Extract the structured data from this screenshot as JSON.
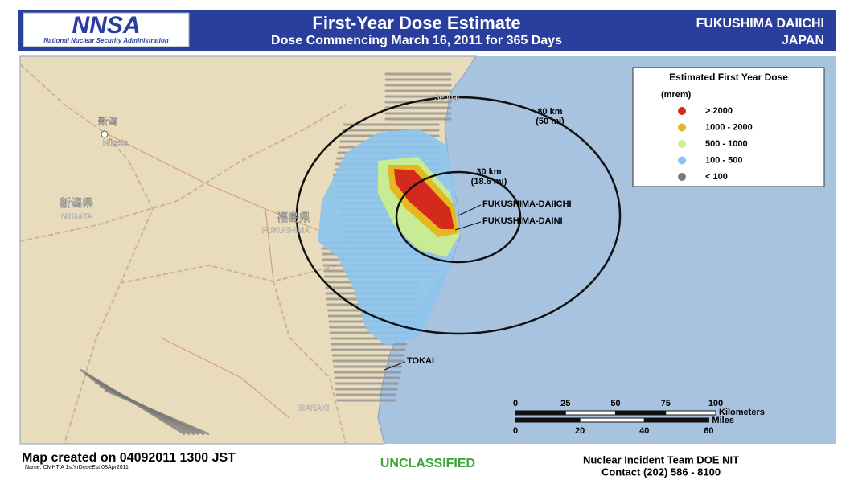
{
  "header": {
    "logo": "NNSA",
    "logo_caption": "National Nuclear Security Administration",
    "title": "First-Year Dose Estimate",
    "subtitle": "Dose Commencing March 16, 2011 for 365 Days",
    "site": "FUKUSHIMA DAIICHI",
    "country": "JAPAN"
  },
  "legend": {
    "title": "Estimated First Year Dose",
    "unit": "(mrem)",
    "items": [
      {
        "label": "> 2000",
        "color": "#d42a1e"
      },
      {
        "label": "1000 - 2000",
        "color": "#e6b820"
      },
      {
        "label": "500 - 1000",
        "color": "#cdf08a"
      },
      {
        "label": "100 - 500",
        "color": "#8cc4f0"
      },
      {
        "label": "< 100",
        "color": "#7a7a7a"
      }
    ]
  },
  "rings": [
    {
      "label": "80 km",
      "sublabel": "(50 mi)"
    },
    {
      "label": "30 km",
      "sublabel": "(18.6 mi)"
    }
  ],
  "places": {
    "daiichi": "FUKUSHIMA-DAIICHI",
    "daini": "FUKUSHIMA-DAINI",
    "tokai": "TOKAI",
    "niigata_city": "Niigata",
    "niigata_city_jp": "新潟",
    "niigata_pref_jp": "新潟県",
    "niigata_pref": "NIIGATA",
    "fukushima_pref_jp": "福島県",
    "fukushima_pref": "FUKUSHIMA",
    "ibaraki": "IBARAKI",
    "sendai": "Sendai"
  },
  "scale": {
    "km_ticks": [
      0,
      25,
      50,
      75,
      100
    ],
    "km_label": "Kilometers",
    "mile_ticks": [
      0,
      20,
      40,
      60
    ],
    "mile_label": "Miles"
  },
  "footer": {
    "created": "Map created on 04092011 1300 JST",
    "name": "Name: CMHT A 1stYrDoseEst 08Apr2011",
    "classification": "UNCLASSIFIED",
    "team": "Nuclear Incident Team DOE NIT",
    "contact": "Contact (202) 586 - 8100"
  }
}
